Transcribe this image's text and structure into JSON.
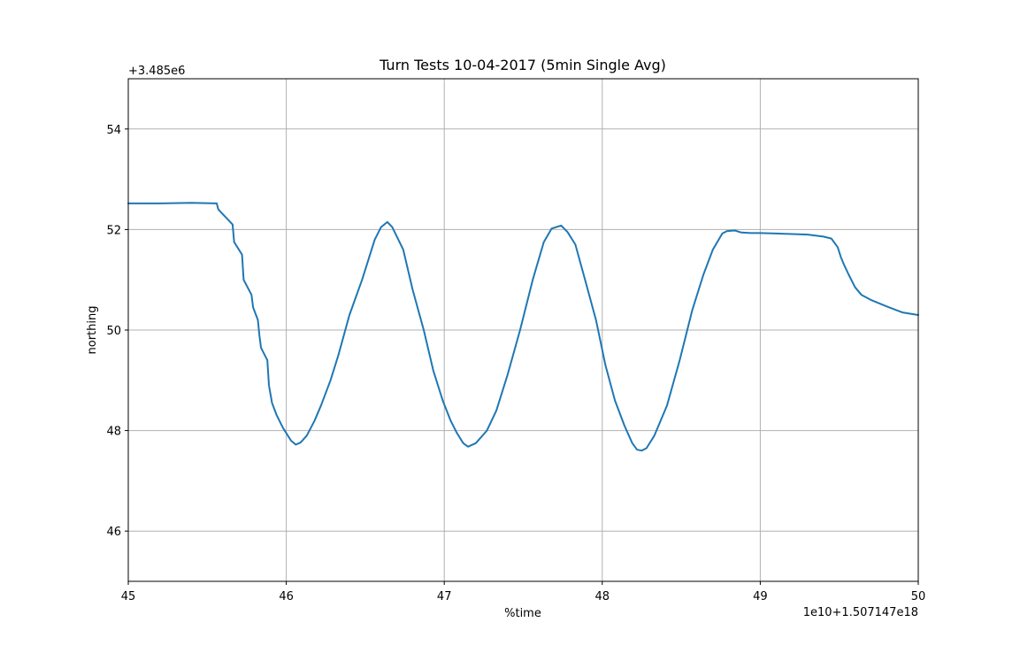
{
  "chart_data": {
    "type": "line",
    "title": "Turn Tests 10-04-2017 (5min Single Avg)",
    "xlabel": "%time",
    "ylabel": "northing",
    "x_offset_text": "1e10+1.507147e18",
    "y_offset_text": "+3.485e6",
    "xlim": [
      45,
      50
    ],
    "ylim": [
      45,
      55
    ],
    "xticks": [
      45,
      46,
      47,
      48,
      49,
      50
    ],
    "xtick_labels": [
      "45",
      "46",
      "47",
      "48",
      "49",
      "50"
    ],
    "yticks": [
      46,
      48,
      50,
      52,
      54
    ],
    "ytick_labels": [
      "46",
      "48",
      "50",
      "52",
      "54"
    ],
    "grid": true,
    "series": [
      {
        "name": "northing",
        "color": "#1f77b4",
        "x": [
          45.0,
          45.2,
          45.4,
          45.56,
          45.57,
          45.6,
          45.66,
          45.67,
          45.72,
          45.73,
          45.78,
          45.79,
          45.82,
          45.83,
          45.84,
          45.88,
          45.89,
          45.91,
          45.94,
          45.98,
          46.03,
          46.06,
          46.09,
          46.13,
          46.18,
          46.22,
          46.28,
          46.33,
          46.4,
          46.48,
          46.56,
          46.6,
          46.64,
          46.67,
          46.74,
          46.8,
          46.87,
          46.93,
          46.99,
          47.04,
          47.08,
          47.12,
          47.15,
          47.2,
          47.27,
          47.33,
          47.4,
          47.48,
          47.56,
          47.63,
          47.68,
          47.71,
          47.74,
          47.78,
          47.83,
          47.9,
          47.96,
          48.02,
          48.08,
          48.14,
          48.19,
          48.22,
          48.25,
          48.28,
          48.33,
          48.41,
          48.49,
          48.57,
          48.64,
          48.7,
          48.76,
          48.79,
          48.84,
          48.88,
          48.94,
          49.0,
          49.1,
          49.2,
          49.3,
          49.4,
          49.45,
          49.49,
          49.51,
          49.53,
          49.56,
          49.6,
          49.64,
          49.7,
          49.8,
          49.9,
          50.0
        ],
        "y": [
          52.52,
          52.52,
          52.53,
          52.52,
          52.4,
          52.3,
          52.1,
          51.75,
          51.5,
          51.0,
          50.7,
          50.45,
          50.2,
          49.9,
          49.65,
          49.4,
          48.9,
          48.55,
          48.3,
          48.05,
          47.8,
          47.72,
          47.76,
          47.9,
          48.2,
          48.5,
          49.0,
          49.5,
          50.3,
          51.0,
          51.8,
          52.05,
          52.15,
          52.05,
          51.6,
          50.8,
          50.0,
          49.2,
          48.6,
          48.2,
          47.95,
          47.75,
          47.68,
          47.75,
          48.0,
          48.4,
          49.1,
          50.0,
          51.0,
          51.75,
          52.02,
          52.05,
          52.08,
          51.95,
          51.7,
          50.9,
          50.2,
          49.3,
          48.6,
          48.1,
          47.75,
          47.62,
          47.6,
          47.65,
          47.9,
          48.5,
          49.4,
          50.4,
          51.1,
          51.6,
          51.92,
          51.97,
          51.98,
          51.94,
          51.93,
          51.93,
          51.92,
          51.91,
          51.9,
          51.86,
          51.82,
          51.65,
          51.45,
          51.3,
          51.1,
          50.85,
          50.7,
          50.6,
          50.47,
          50.35,
          50.3
        ]
      }
    ]
  }
}
